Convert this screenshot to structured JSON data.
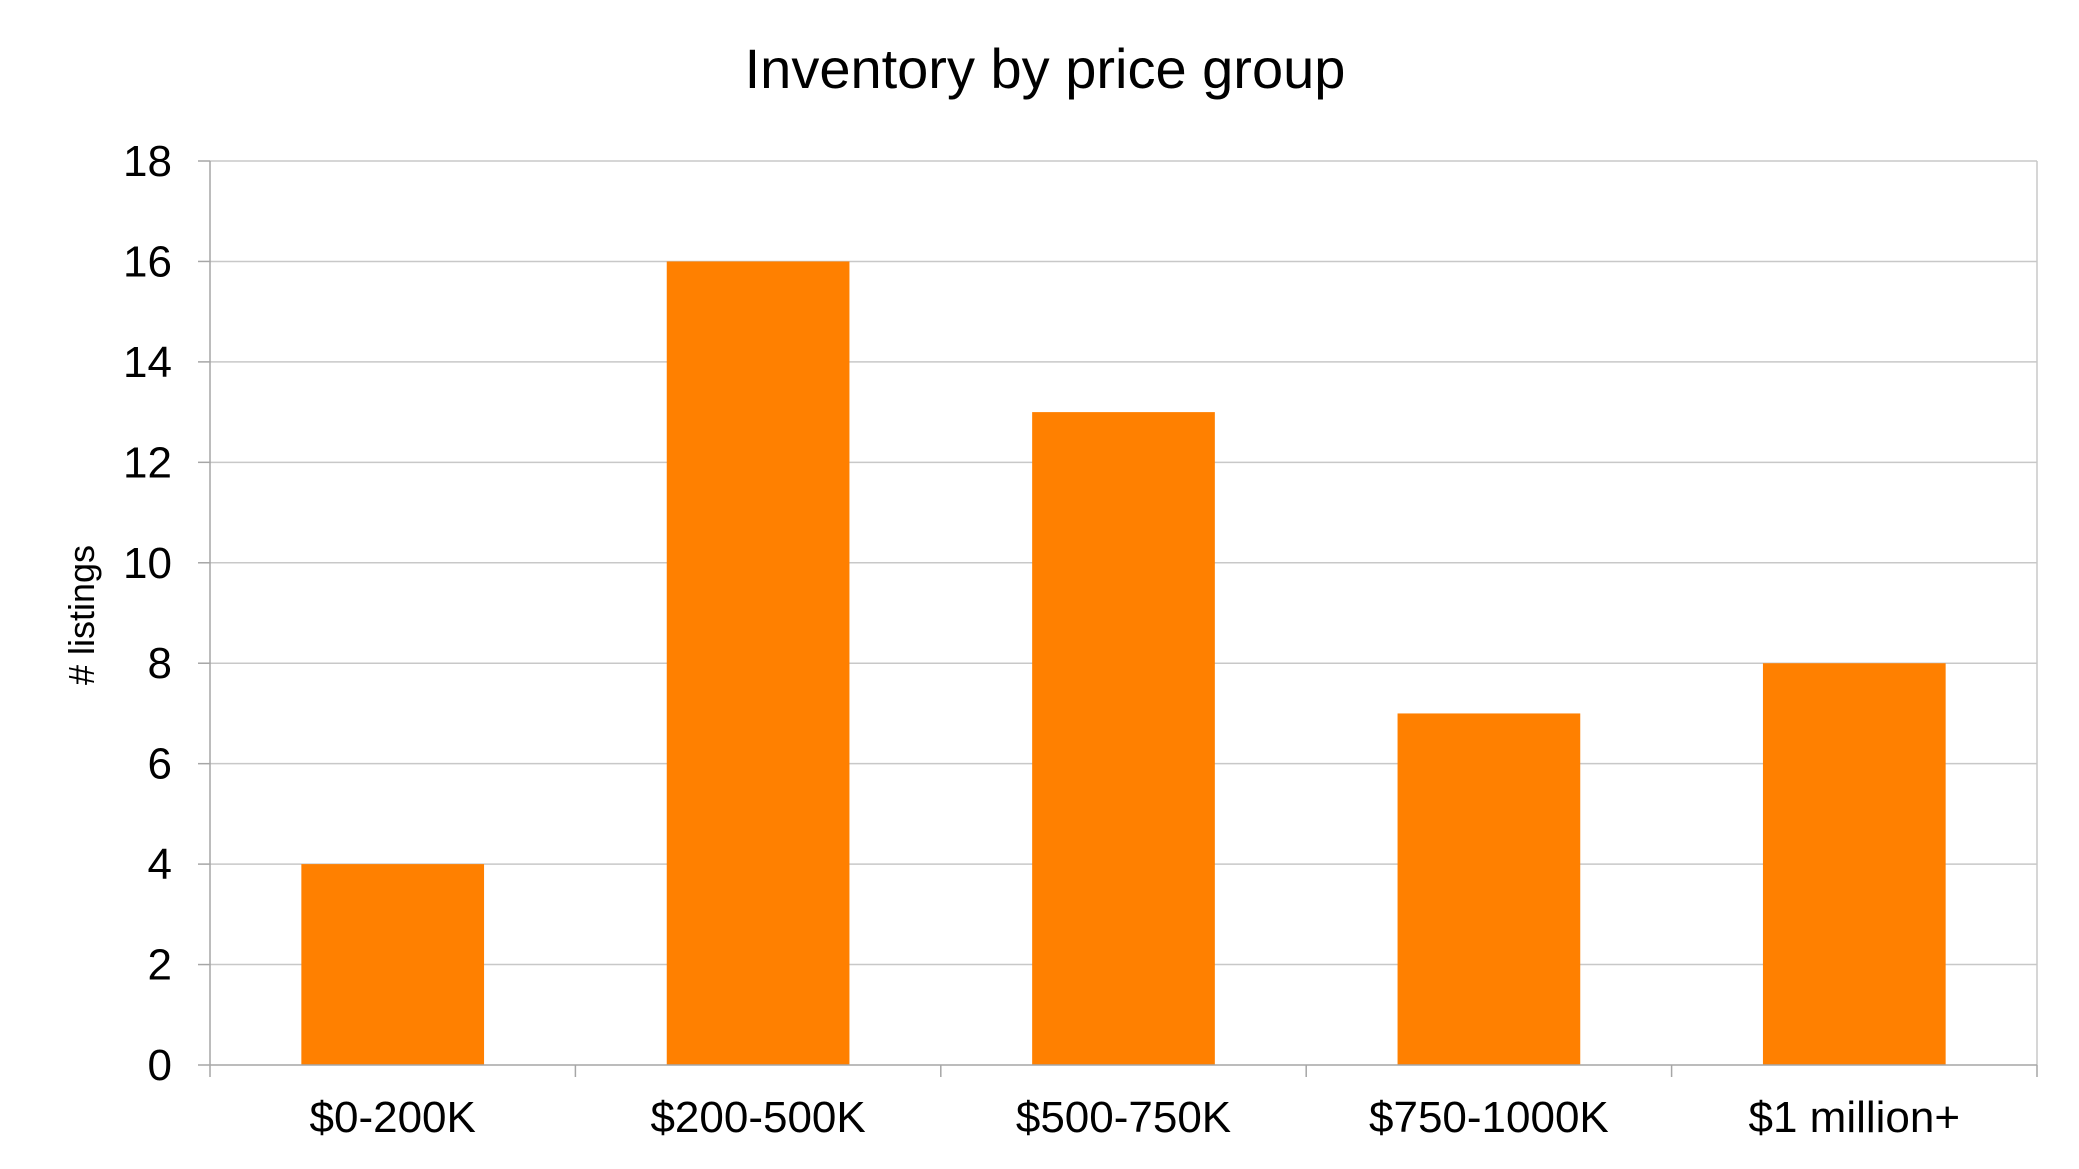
{
  "chart_data": {
    "type": "bar",
    "title": "Inventory by price group",
    "xlabel": "",
    "ylabel": "# listings",
    "categories": [
      "$0-200K",
      "$200-500K",
      "$500-750K",
      "$750-1000K",
      "$1 million+"
    ],
    "series": [
      {
        "values": [
          4,
          16,
          13,
          7,
          8
        ],
        "color": "#FF8000"
      }
    ],
    "ylim": [
      0,
      18
    ],
    "yticks": [
      0,
      2,
      4,
      6,
      8,
      10,
      12,
      14,
      16,
      18
    ],
    "grid": true,
    "gridColor": "#C8C8C8",
    "axisColor": "#A6A6A6",
    "legend": "none"
  }
}
